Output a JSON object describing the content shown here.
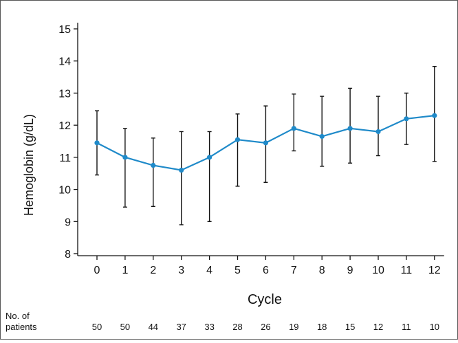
{
  "chart_data": {
    "type": "line",
    "title": "",
    "xlabel": "Cycle",
    "ylabel": "Hemoglobin (g/dL)",
    "ylim": [
      8,
      15
    ],
    "yticks": [
      8,
      9,
      10,
      11,
      12,
      13,
      14,
      15
    ],
    "x": [
      0,
      1,
      2,
      3,
      4,
      5,
      6,
      7,
      8,
      9,
      10,
      11,
      12
    ],
    "series": [
      {
        "values": [
          11.45,
          11.0,
          10.75,
          10.6,
          11.0,
          11.55,
          11.45,
          11.9,
          11.65,
          11.9,
          11.8,
          12.2,
          12.3
        ],
        "lower": [
          10.45,
          9.45,
          9.47,
          8.9,
          9.0,
          10.1,
          10.22,
          11.2,
          10.72,
          10.82,
          11.05,
          11.4,
          10.87
        ],
        "upper": [
          12.45,
          11.9,
          11.6,
          11.8,
          11.8,
          12.35,
          12.6,
          12.97,
          12.9,
          13.15,
          12.9,
          13.0,
          13.83
        ],
        "color": "#1f8ac9"
      }
    ],
    "grid": false,
    "risk_table": {
      "label_line1": "No. of",
      "label_line2": "patients",
      "values": [
        50,
        50,
        44,
        37,
        33,
        28,
        26,
        19,
        18,
        15,
        12,
        11,
        10
      ]
    }
  }
}
